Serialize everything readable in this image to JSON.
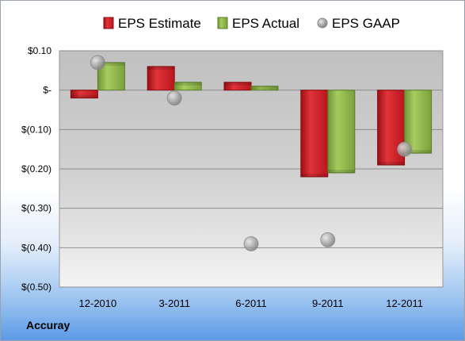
{
  "company": "Accuray",
  "chart_data": {
    "type": "bar",
    "categories": [
      "12-2010",
      "3-2011",
      "6-2011",
      "9-2011",
      "12-2011"
    ],
    "series": [
      {
        "name": "EPS Estimate",
        "type": "bar",
        "color": "#cc1f26",
        "values": [
          -0.02,
          0.06,
          0.02,
          -0.22,
          -0.19
        ]
      },
      {
        "name": "EPS Actual",
        "type": "bar",
        "color": "#8db545",
        "values": [
          0.07,
          0.02,
          0.01,
          -0.21,
          -0.16
        ]
      },
      {
        "name": "EPS GAAP",
        "type": "scatter",
        "color": "#a8a8a8",
        "values": [
          0.07,
          -0.02,
          -0.39,
          -0.38,
          -0.15
        ]
      }
    ],
    "yticks": [
      {
        "value": 0.1,
        "label": "$0.10"
      },
      {
        "value": 0,
        "label": "$-"
      },
      {
        "value": -0.1,
        "label": "$(0.10)"
      },
      {
        "value": -0.2,
        "label": "$(0.20)"
      },
      {
        "value": -0.3,
        "label": "$(0.30)"
      },
      {
        "value": -0.4,
        "label": "$(0.40)"
      },
      {
        "value": -0.5,
        "label": "$(0.50)"
      }
    ],
    "ylim": [
      -0.5,
      0.1
    ],
    "legend": "top",
    "grid": true
  }
}
